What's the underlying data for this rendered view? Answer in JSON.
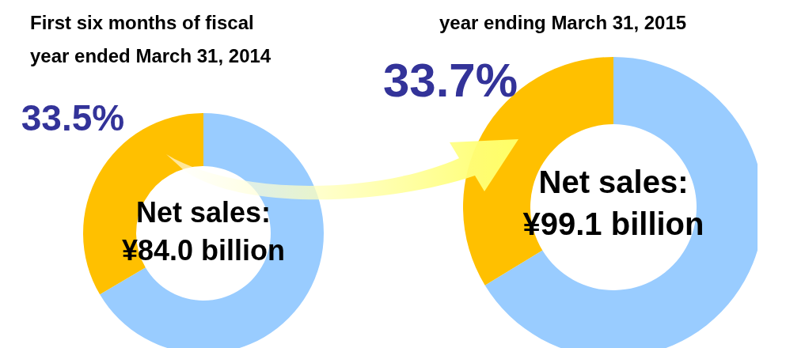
{
  "chart_data": [
    {
      "type": "donut",
      "title": "First six months of fiscal year ended March 31, 2014",
      "categories": [
        null,
        null
      ],
      "values": [
        66.5,
        33.5
      ],
      "colors": [
        "#99ccff",
        "#ffc000"
      ],
      "value_labels": [
        null,
        "33.5%"
      ],
      "annotations": [
        "Net sales:",
        "¥84.0 billion"
      ]
    },
    {
      "type": "donut",
      "title": "year ending March 31, 2015",
      "categories": [
        null,
        null
      ],
      "values": [
        66.3,
        33.7
      ],
      "colors": [
        "#99ccff",
        "#ffc000"
      ],
      "value_labels": [
        null,
        "33.7%"
      ],
      "annotations": [
        "Net sales:",
        "¥99.1 billion"
      ]
    }
  ]
}
